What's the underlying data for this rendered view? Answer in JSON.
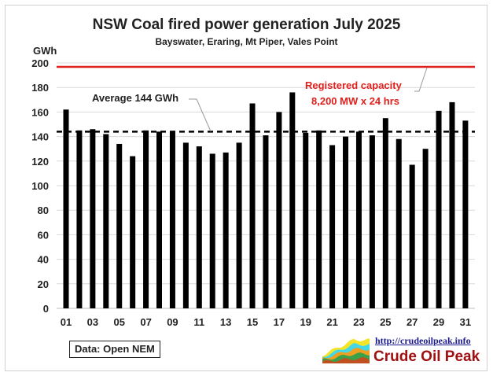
{
  "chart_data": {
    "type": "bar",
    "title": "NSW Coal fired power generation July 2025",
    "subtitle": "Bayswater, Eraring, Mt Piper, Vales Point",
    "ylabel": "GWh",
    "ylim": [
      0,
      200
    ],
    "yticks": [
      0,
      20,
      40,
      60,
      80,
      100,
      120,
      140,
      160,
      180,
      200
    ],
    "categories": [
      "01",
      "02",
      "03",
      "04",
      "05",
      "06",
      "07",
      "08",
      "09",
      "10",
      "11",
      "12",
      "13",
      "14",
      "15",
      "16",
      "17",
      "18",
      "19",
      "20",
      "21",
      "22",
      "23",
      "24",
      "25",
      "26",
      "27",
      "28",
      "29",
      "30",
      "31"
    ],
    "xtick_labels": [
      "01",
      "03",
      "05",
      "07",
      "09",
      "11",
      "13",
      "15",
      "17",
      "19",
      "21",
      "23",
      "25",
      "27",
      "29",
      "31"
    ],
    "values": [
      162,
      145,
      146,
      142,
      134,
      124,
      145,
      144,
      144,
      135,
      132,
      126,
      127,
      135,
      167,
      141,
      160,
      176,
      143,
      145,
      133,
      140,
      144,
      141,
      155,
      138,
      117,
      130,
      161,
      168,
      153
    ],
    "grid": true,
    "bar_color": "#000000",
    "average": {
      "value": 144,
      "label": "Average 144 GWh",
      "style": "dashed"
    },
    "capacity": {
      "value": 196.8,
      "label_line1": "Registered capacity",
      "label_line2": "8,200 MW x 24 hrs",
      "color": "#e0201c"
    }
  },
  "source": "Data: Open NEM",
  "logo": {
    "url": "http://crudeoilpeak.info",
    "name": "Crude Oil Peak"
  }
}
